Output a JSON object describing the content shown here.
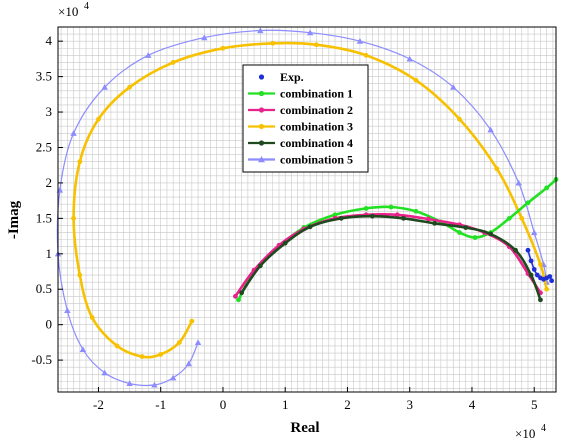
{
  "chart_data": {
    "type": "line",
    "title": "",
    "xlabel": "Real",
    "ylabel": "-Imag",
    "x_multiplier": "×10",
    "x_multiplier_exp": "4",
    "y_multiplier": "×10",
    "y_multiplier_exp": "4",
    "xlim": [
      -2.65,
      5.35
    ],
    "ylim": [
      -0.95,
      4.2
    ],
    "x_ticks": [
      -2,
      -1,
      0,
      1,
      2,
      3,
      4,
      5
    ],
    "y_ticks": [
      -0.5,
      0,
      0.5,
      1,
      1.5,
      2,
      2.5,
      3,
      3.5,
      4
    ],
    "x_tick_labels": [
      "-2",
      "-1",
      "0",
      "1",
      "2",
      "3",
      "4",
      "5"
    ],
    "y_tick_labels": [
      "-0.5",
      "0",
      "0.5",
      "1",
      "1.5",
      "2",
      "2.5",
      "3",
      "3.5",
      "4"
    ],
    "grid": true,
    "legend_position": "top-center",
    "series": [
      {
        "name": "Exp.",
        "color": "#1f2fd6",
        "marker": "dot",
        "x": [
          4.9,
          4.95,
          5.0,
          5.05,
          5.1,
          5.15,
          5.2,
          5.25,
          5.28
        ],
        "y": [
          1.05,
          0.9,
          0.78,
          0.7,
          0.66,
          0.64,
          0.66,
          0.68,
          0.62
        ]
      },
      {
        "name": "combination 1",
        "color": "#22e022",
        "marker": "dot",
        "x": [
          0.25,
          0.5,
          0.9,
          1.3,
          1.8,
          2.3,
          2.7,
          3.1,
          3.5,
          3.8,
          4.05,
          4.3,
          4.6,
          4.9,
          5.2,
          5.35
        ],
        "y": [
          0.35,
          0.75,
          1.1,
          1.37,
          1.55,
          1.64,
          1.66,
          1.6,
          1.45,
          1.3,
          1.23,
          1.3,
          1.5,
          1.72,
          1.93,
          2.05
        ]
      },
      {
        "name": "combination 2",
        "color": "#e8228a",
        "marker": "dot",
        "x": [
          0.2,
          0.5,
          0.9,
          1.3,
          1.8,
          2.3,
          2.8,
          3.3,
          3.8,
          4.2,
          4.6,
          4.9,
          5.1
        ],
        "y": [
          0.4,
          0.77,
          1.12,
          1.35,
          1.5,
          1.55,
          1.55,
          1.49,
          1.41,
          1.3,
          1.1,
          0.72,
          0.45
        ]
      },
      {
        "name": "combination 3",
        "color": "#f7c100",
        "marker": "dot",
        "x": [
          -0.5,
          -0.7,
          -1.0,
          -1.3,
          -1.7,
          -2.1,
          -2.3,
          -2.4,
          -2.3,
          -2.0,
          -1.5,
          -0.8,
          0.0,
          0.8,
          1.5,
          2.3,
          3.1,
          3.8,
          4.4,
          4.8,
          5.1,
          5.2
        ],
        "y": [
          0.05,
          -0.25,
          -0.42,
          -0.45,
          -0.3,
          0.1,
          0.7,
          1.5,
          2.3,
          2.9,
          3.35,
          3.7,
          3.9,
          3.97,
          3.95,
          3.8,
          3.45,
          2.9,
          2.2,
          1.5,
          0.85,
          0.5
        ]
      },
      {
        "name": "combination 4",
        "color": "#1f4a1f",
        "marker": "dot",
        "x": [
          0.3,
          0.6,
          1.0,
          1.4,
          1.9,
          2.4,
          2.9,
          3.4,
          3.9,
          4.3,
          4.7,
          4.95,
          5.1
        ],
        "y": [
          0.45,
          0.83,
          1.15,
          1.38,
          1.5,
          1.53,
          1.5,
          1.43,
          1.37,
          1.28,
          1.05,
          0.7,
          0.35
        ]
      },
      {
        "name": "combination 5",
        "color": "#8c8cff",
        "marker": "triangle",
        "x": [
          -0.4,
          -0.55,
          -0.8,
          -1.1,
          -1.5,
          -1.9,
          -2.25,
          -2.5,
          -2.65,
          -2.62,
          -2.4,
          -1.9,
          -1.2,
          -0.3,
          0.6,
          1.4,
          2.2,
          3.0,
          3.7,
          4.3,
          4.75,
          5.0,
          5.15,
          5.2
        ],
        "y": [
          -0.25,
          -0.55,
          -0.75,
          -0.85,
          -0.83,
          -0.68,
          -0.35,
          0.2,
          1.0,
          1.9,
          2.7,
          3.35,
          3.8,
          4.05,
          4.15,
          4.12,
          4.0,
          3.75,
          3.35,
          2.75,
          2.0,
          1.3,
          0.85,
          0.6
        ]
      }
    ]
  }
}
